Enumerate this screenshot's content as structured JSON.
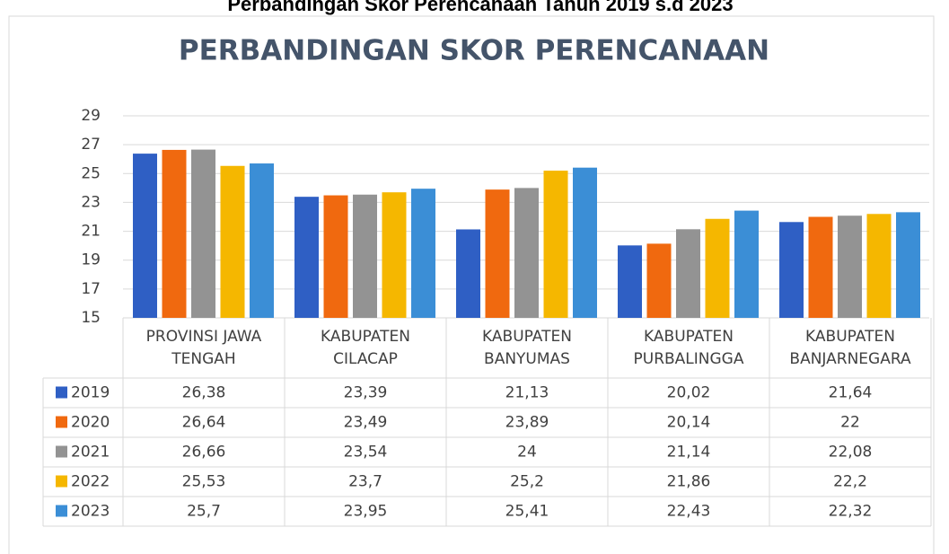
{
  "supertitle": "Perbandingan Skor Perencanaan Tahun 2019 s.d 2023",
  "chart_data": {
    "type": "bar",
    "title": "PERBANDINGAN SKOR PERENCANAAN",
    "categories": [
      "PROVINSI JAWA TENGAH",
      "KABUPATEN CILACAP",
      "KABUPATEN BANYUMAS",
      "KABUPATEN PURBALINGGA",
      "KABUPATEN BANJARNEGARA"
    ],
    "series": [
      {
        "name": "2019",
        "color": "#2f5fc4",
        "values": [
          26.38,
          23.39,
          21.13,
          20.02,
          21.64
        ],
        "value_labels": [
          "26,38",
          "23,39",
          "21,13",
          "20,02",
          "21,64"
        ]
      },
      {
        "name": "2020",
        "color": "#f0690f",
        "values": [
          26.64,
          23.49,
          23.89,
          20.14,
          22
        ],
        "value_labels": [
          "26,64",
          "23,49",
          "23,89",
          "20,14",
          "22"
        ]
      },
      {
        "name": "2021",
        "color": "#939393",
        "values": [
          26.66,
          23.54,
          24,
          21.14,
          22.08
        ],
        "value_labels": [
          "26,66",
          "23,54",
          "24",
          "21,14",
          "22,08"
        ]
      },
      {
        "name": "2022",
        "color": "#f5b700",
        "values": [
          25.53,
          23.7,
          25.2,
          21.86,
          22.2
        ],
        "value_labels": [
          "25,53",
          "23,7",
          "25,2",
          "21,86",
          "22,2"
        ]
      },
      {
        "name": "2023",
        "color": "#3b8ed6",
        "values": [
          25.7,
          23.95,
          25.41,
          22.43,
          22.32
        ],
        "value_labels": [
          "25,7",
          "23,95",
          "25,41",
          "22,43",
          "22,32"
        ]
      }
    ],
    "ylim": [
      15,
      29
    ],
    "yticks": [
      15,
      17,
      19,
      21,
      23,
      25,
      27,
      29
    ],
    "grid": true
  }
}
